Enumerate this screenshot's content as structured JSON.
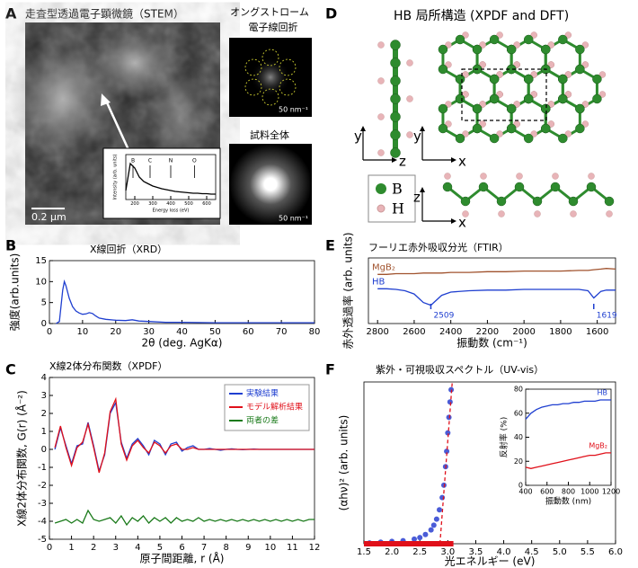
{
  "panel_a": {
    "label": "A",
    "title": "走査型透過電子顕微鏡（STEM）",
    "scale_bar": "0.2 μm",
    "diffraction_title": [
      "オングストローム",
      "電子線回折"
    ],
    "diffraction_scale": "50 nm⁻¹",
    "whole_title": "試料全体",
    "whole_scale": "50 nm⁻¹"
  },
  "panel_d": {
    "label": "D",
    "title": "HB 局所構造 (XPDF and DFT)",
    "legend": [
      "B",
      "H"
    ],
    "axes": [
      [
        "y",
        "z"
      ],
      [
        "y",
        "x"
      ],
      [
        "z",
        "x"
      ]
    ]
  },
  "chart_data": [
    {
      "type": "line",
      "xlabel": "Energy loss (eV)",
      "ylabel": "Intensity (arb. units)",
      "x": [
        150,
        175,
        200,
        225,
        250,
        275,
        300,
        325,
        350,
        375,
        400,
        425,
        450,
        475,
        500,
        525,
        550,
        575,
        600,
        625,
        650
      ],
      "series": [
        {
          "color": "#000000",
          "values": [
            2,
            8,
            7,
            5,
            4,
            3.5,
            3,
            2.7,
            2.4,
            2.2,
            2,
            1.8,
            1.7,
            1.6,
            1.5,
            1.4,
            1.4,
            1.3,
            1.3,
            1.2,
            1.2
          ]
        }
      ],
      "xlim": [
        150,
        650
      ],
      "xticks": [
        200,
        300,
        400,
        500,
        600
      ],
      "ylim": [
        0,
        10
      ],
      "annotations": [
        {
          "text": "B",
          "x": 190
        },
        {
          "text": "C",
          "x": 285
        },
        {
          "text": "N",
          "x": 400
        },
        {
          "text": "O",
          "x": 532
        }
      ]
    },
    {
      "type": "line",
      "panel": "B",
      "title": "X線回折（XRD）",
      "xlabel": "2θ (deg. AgKα)",
      "ylabel": "強度(arb.units)",
      "x": [
        2,
        3,
        4,
        4.5,
        5,
        6,
        7,
        8,
        9,
        10,
        11,
        12,
        13,
        14,
        15,
        17,
        20,
        23,
        25,
        27,
        30,
        35,
        40,
        50,
        60,
        70,
        80
      ],
      "series": [
        {
          "color": "#1f3fd0",
          "values": [
            0,
            0.5,
            8,
            10,
            9,
            6,
            4,
            3,
            2.5,
            2.2,
            2.3,
            2.6,
            2.4,
            1.8,
            1.3,
            1,
            0.8,
            0.7,
            0.9,
            0.6,
            0.5,
            0.3,
            0.3,
            0.2,
            0.2,
            0.2,
            0.2
          ]
        }
      ],
      "xlim": [
        0,
        80
      ],
      "xticks": [
        0,
        10,
        20,
        30,
        40,
        50,
        60,
        70,
        80
      ],
      "ylim": [
        0,
        15
      ],
      "yticks": [
        0,
        5,
        10,
        15
      ]
    },
    {
      "type": "line",
      "panel": "C",
      "title": "X線2体分布関数（XPDF）",
      "xlabel": "原子間距離, r (Å)",
      "ylabel": "X線2体分布関数, G(r) (Å⁻²)",
      "x": [
        0.25,
        0.5,
        0.75,
        1,
        1.25,
        1.5,
        1.75,
        2,
        2.25,
        2.5,
        2.75,
        3,
        3.25,
        3.5,
        3.75,
        4,
        4.25,
        4.5,
        4.75,
        5,
        5.25,
        5.5,
        5.75,
        6,
        6.25,
        6.5,
        6.75,
        7,
        7.25,
        7.5,
        7.75,
        8,
        8.25,
        8.5,
        8.75,
        9,
        9.25,
        9.5,
        9.75,
        10,
        10.25,
        10.5,
        10.75,
        11,
        11.25,
        11.5,
        11.75,
        12
      ],
      "series": [
        {
          "name": "実験結果",
          "color": "#1f3fd0",
          "values": [
            0,
            1.2,
            0.2,
            -0.8,
            0.2,
            0.3,
            1.5,
            0.2,
            -1.2,
            -0.3,
            2,
            2.6,
            0.4,
            -0.5,
            0.3,
            0.6,
            0.2,
            -0.3,
            0.5,
            0.3,
            -0.3,
            0.3,
            0.4,
            -0.1,
            0.1,
            0.2,
            0,
            0,
            0.05,
            0,
            -0.05,
            0,
            0.03,
            0,
            -0.02,
            0,
            0.02,
            0,
            0,
            0,
            0,
            0,
            0,
            0,
            0,
            0,
            0,
            0
          ]
        },
        {
          "name": "モデル解析結果",
          "color": "#e0101a",
          "values": [
            0.1,
            1.3,
            0.1,
            -0.9,
            0.1,
            0.4,
            1.4,
            0.1,
            -1.3,
            -0.2,
            2.1,
            2.8,
            0.3,
            -0.6,
            0.2,
            0.5,
            0.1,
            -0.2,
            0.4,
            0.2,
            -0.2,
            0.2,
            0.3,
            0,
            0,
            0.1,
            0,
            0,
            0,
            0,
            0,
            0,
            0,
            0,
            0,
            0,
            0,
            0,
            0,
            0,
            0,
            0,
            0,
            0,
            0,
            0,
            0,
            0
          ]
        },
        {
          "name": "両者の差",
          "color": "#1a7a1a",
          "values": [
            -4.1,
            -4,
            -3.9,
            -4.1,
            -3.9,
            -4.1,
            -3.4,
            -3.9,
            -4,
            -3.9,
            -3.8,
            -4.1,
            -3.7,
            -4.2,
            -3.8,
            -4,
            -3.7,
            -4.1,
            -3.8,
            -4,
            -3.8,
            -4.1,
            -3.8,
            -4,
            -3.9,
            -4,
            -3.8,
            -4,
            -3.9,
            -4,
            -3.9,
            -4,
            -3.9,
            -4,
            -3.9,
            -4,
            -3.9,
            -4,
            -3.9,
            -4,
            -3.9,
            -4,
            -3.9,
            -4,
            -3.9,
            -4,
            -3.9,
            -3.9
          ]
        }
      ],
      "xlim": [
        0,
        12
      ],
      "xticks": [
        0,
        1,
        2,
        3,
        4,
        5,
        6,
        7,
        8,
        9,
        10,
        11,
        12
      ],
      "ylim": [
        -5,
        4
      ],
      "yticks": [
        -5,
        -4,
        -3,
        -2,
        -1,
        0,
        1,
        2,
        3,
        4
      ],
      "legend": "upper right"
    },
    {
      "type": "line",
      "panel": "E",
      "title": "フーリエ赤外吸収分光（FTIR）",
      "xlabel": "振動数 (cm⁻¹)",
      "ylabel": "赤外透過率 (arb. units)",
      "x": [
        2800,
        2750,
        2700,
        2650,
        2600,
        2550,
        2509,
        2450,
        2400,
        2300,
        2200,
        2100,
        2000,
        1900,
        1800,
        1700,
        1650,
        1619,
        1580,
        1550,
        1500
      ],
      "series": [
        {
          "name": "MgB₂",
          "color": "#a0522d",
          "values": [
            7.5,
            7.5,
            7.6,
            7.6,
            7.6,
            7.7,
            7.7,
            7.7,
            7.8,
            7.8,
            7.9,
            7.9,
            8,
            8,
            8,
            8.1,
            8.1,
            8.2,
            8.3,
            8.4,
            8.3
          ]
        },
        {
          "name": "HB",
          "color": "#1f3fd0",
          "values": [
            5.3,
            5.3,
            5.2,
            5,
            4.5,
            3.2,
            2.8,
            4.3,
            4.8,
            5,
            5.1,
            5.1,
            5.2,
            5.2,
            5.2,
            5.2,
            5,
            3.9,
            4.9,
            5.1,
            5.1
          ]
        }
      ],
      "xlim": [
        2850,
        1500
      ],
      "xticks": [
        2800,
        2600,
        2400,
        2200,
        2000,
        1800,
        1600
      ],
      "ylim": [
        0,
        10
      ],
      "inline_labels": "left",
      "annotations": [
        2509,
        1619
      ]
    },
    {
      "type": "scatter",
      "panel": "F",
      "title": "紫外・可視吸収スペクトル（UV-vis）",
      "xlabel": "光エネルギー (eV)",
      "ylabel": "(αhν)² (arb. units)",
      "series": [
        {
          "color": "#2a3fd0",
          "mode": "markers",
          "x": [
            1.6,
            1.8,
            2,
            2.2,
            2.4,
            2.5,
            2.6,
            2.7,
            2.75,
            2.8,
            2.85,
            2.9,
            2.93,
            2.96,
            2.98,
            3,
            3.02,
            3.04,
            3.06
          ],
          "values": [
            0.05,
            0.1,
            0.15,
            0.2,
            0.3,
            0.4,
            0.6,
            0.9,
            1.2,
            1.6,
            2.2,
            3,
            3.8,
            5,
            6,
            7.2,
            8.2,
            9.2,
            10
          ]
        },
        {
          "color": "#e0101a",
          "dash": true,
          "x": [
            2.86,
            3.08
          ],
          "values": [
            0,
            10.5
          ]
        },
        {
          "color": "#e0101a",
          "width": 6,
          "x": [
            1.5,
            3.1
          ],
          "values": [
            0,
            0
          ]
        }
      ],
      "xlim": [
        1.5,
        6
      ],
      "xticks": [
        1.5,
        {
          "value": 2,
          "label": "2.0"
        },
        2.5,
        {
          "value": 3,
          "label": "3.0"
        },
        3.5,
        {
          "value": 4,
          "label": "4.0"
        },
        4.5,
        {
          "value": 5,
          "label": "5.0"
        },
        5.5,
        {
          "value": 6,
          "label": "6.0"
        }
      ],
      "ylim": [
        0,
        10.5
      ]
    },
    {
      "type": "line",
      "xlabel": "振動数 (nm)",
      "ylabel": "反射率 (%)",
      "x": [
        400,
        450,
        500,
        550,
        600,
        650,
        700,
        750,
        800,
        850,
        900,
        950,
        1000,
        1050,
        1100,
        1150,
        1200
      ],
      "series": [
        {
          "name": "HB",
          "color": "#1f3fd0",
          "values": [
            55,
            60,
            63,
            65,
            66,
            67,
            67,
            68,
            68,
            69,
            69,
            70,
            70,
            70,
            71,
            71,
            71
          ]
        },
        {
          "name": "MgB₂",
          "color": "#e0101a",
          "values": [
            15,
            14,
            15,
            16,
            17,
            18,
            19,
            20,
            21,
            22,
            23,
            24,
            25,
            25,
            26,
            27,
            27
          ]
        }
      ],
      "xlim": [
        400,
        1200
      ],
      "xticks": [
        400,
        600,
        800,
        1000,
        1200
      ],
      "ylim": [
        0,
        80
      ],
      "yticks": [
        0,
        20,
        40,
        60,
        80
      ],
      "inline_labels": "right"
    }
  ]
}
